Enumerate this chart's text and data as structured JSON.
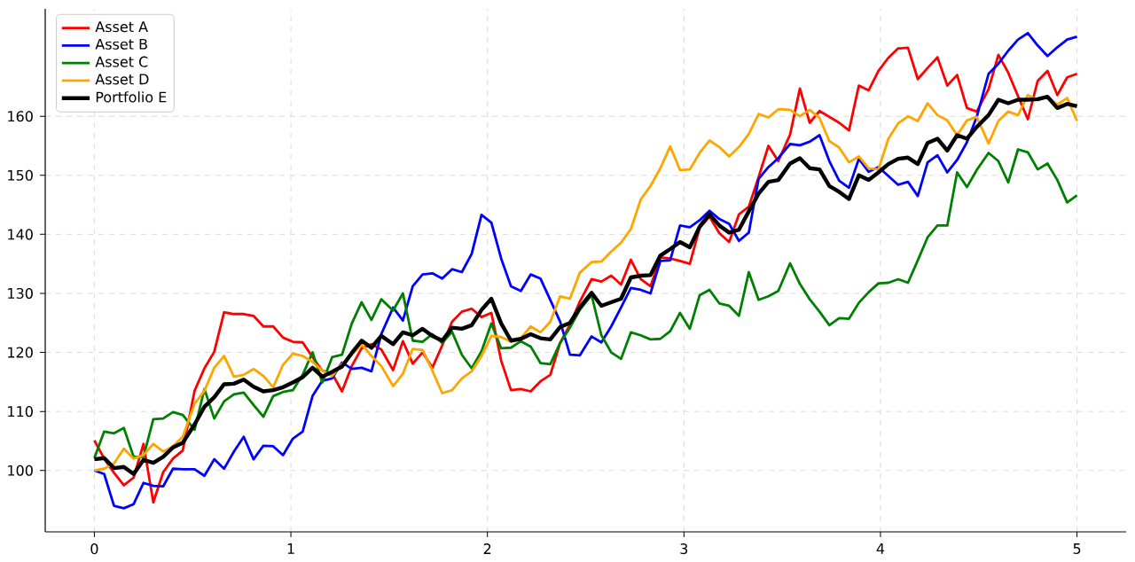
{
  "chart_data": {
    "type": "line",
    "x": [
      0,
      0.05,
      0.1,
      0.15,
      0.2,
      0.25,
      0.3,
      0.35,
      0.4,
      0.45,
      0.51,
      0.56,
      0.61,
      0.66,
      0.71,
      0.76,
      0.81,
      0.86,
      0.91,
      0.96,
      1.01,
      1.06,
      1.11,
      1.16,
      1.21,
      1.26,
      1.31,
      1.36,
      1.41,
      1.46,
      1.52,
      1.57,
      1.62,
      1.67,
      1.72,
      1.77,
      1.82,
      1.87,
      1.92,
      1.97,
      2.02,
      2.07,
      2.12,
      2.17,
      2.22,
      2.27,
      2.32,
      2.37,
      2.42,
      2.47,
      2.53,
      2.58,
      2.63,
      2.68,
      2.73,
      2.78,
      2.83,
      2.88,
      2.93,
      2.98,
      3.03,
      3.08,
      3.13,
      3.18,
      3.23,
      3.28,
      3.33,
      3.38,
      3.43,
      3.48,
      3.54,
      3.59,
      3.64,
      3.69,
      3.74,
      3.79,
      3.84,
      3.89,
      3.94,
      3.99,
      4.04,
      4.09,
      4.14,
      4.19,
      4.24,
      4.29,
      4.34,
      4.39,
      4.44,
      4.49,
      4.55,
      4.6,
      4.65,
      4.7,
      4.75,
      4.8,
      4.85,
      4.9,
      4.95,
      5.0
    ],
    "series": [
      {
        "name": "Asset A",
        "color": "#ff0000",
        "values": [
          105.1,
          102,
          99.6,
          97.5,
          98.8,
          104.5,
          94.6,
          99.7,
          102,
          103.4,
          113.5,
          117.3,
          120.1,
          126.8,
          126.5,
          126.5,
          126.2,
          124.4,
          124.4,
          122.5,
          121.8,
          121.7,
          119.2,
          116.9,
          116.4,
          113.4,
          117.7,
          120.7,
          121.4,
          120.5,
          117,
          121.9,
          118.1,
          120,
          117.4,
          121.2,
          125.2,
          126.9,
          127.4,
          126,
          126.7,
          118.6,
          113.6,
          113.8,
          113.4,
          115.1,
          116.2,
          121.6,
          124.7,
          128.6,
          132.4,
          132,
          133,
          131.5,
          135.7,
          132.4,
          131.2,
          136.1,
          135.9,
          135.5,
          135,
          141.1,
          143,
          140.2,
          138.7,
          143.4,
          144.7,
          149.7,
          155,
          152.4,
          156.9,
          164.7,
          158.9,
          160.9,
          159.9,
          158.9,
          157.6,
          165.2,
          164.4,
          167.7,
          169.9,
          171.5,
          171.6,
          166.3,
          168.2,
          170,
          165.2,
          167,
          161.4,
          160.8,
          164.6,
          170.4,
          167.4,
          163.4,
          159.5,
          166,
          167.7,
          163.6,
          166.6,
          167.2
        ]
      },
      {
        "name": "Asset B",
        "color": "#0000ff",
        "values": [
          100,
          99.4,
          94,
          93.6,
          94.3,
          97.9,
          97.4,
          97.3,
          100.3,
          100.2,
          100.2,
          99.1,
          101.9,
          100.3,
          103.2,
          105.7,
          101.9,
          104.2,
          104.1,
          102.6,
          105.4,
          106.6,
          112.6,
          115.2,
          115.6,
          118.3,
          117.2,
          117.4,
          116.8,
          123.1,
          127.6,
          125.4,
          131.2,
          133.2,
          133.4,
          132.5,
          134.1,
          133.6,
          136.7,
          143.3,
          142,
          135.9,
          131.2,
          130.4,
          133.2,
          132.5,
          128.9,
          125.2,
          119.6,
          119.5,
          122.7,
          121.7,
          124.4,
          127.6,
          130.9,
          130.6,
          130,
          135.5,
          135.6,
          141.5,
          141.2,
          142.4,
          144,
          142.6,
          141.8,
          138.9,
          140.3,
          149.4,
          151.4,
          152.9,
          155.3,
          155.1,
          155.7,
          156.8,
          152.4,
          149.1,
          147.9,
          152.8,
          150.6,
          151.4,
          149.9,
          148.4,
          148.9,
          146.5,
          152.2,
          153.4,
          150.5,
          152.6,
          155.6,
          159.9,
          167.2,
          168.9,
          171.1,
          173,
          174.1,
          172,
          170.2,
          171.7,
          173,
          173.5
        ]
      },
      {
        "name": "Asset C",
        "color": "#008000",
        "values": [
          102.1,
          106.6,
          106.3,
          107.2,
          102.3,
          102.3,
          108.7,
          108.8,
          109.9,
          109.4,
          106.9,
          113.8,
          108.8,
          111.7,
          112.9,
          113.2,
          111.1,
          109.1,
          112.6,
          113.3,
          113.6,
          116.2,
          120,
          114.9,
          119.2,
          119.6,
          124.9,
          128.5,
          125.5,
          129,
          127.1,
          130,
          122,
          121.8,
          123.1,
          121.6,
          123.5,
          119.6,
          117.3,
          120.2,
          124.9,
          120.7,
          120.8,
          121.9,
          121,
          118.2,
          118,
          121.6,
          124.2,
          127.2,
          129.7,
          122.9,
          120,
          118.9,
          123.4,
          122.9,
          122.2,
          122.3,
          123.6,
          126.7,
          124,
          129.7,
          130.6,
          128.3,
          127.9,
          126.2,
          133.6,
          128.9,
          129.5,
          130.4,
          135.1,
          131.6,
          129,
          126.9,
          124.6,
          125.8,
          125.7,
          128.4,
          130.2,
          131.7,
          131.8,
          132.4,
          131.8,
          135.6,
          139.5,
          141.5,
          141.5,
          150.5,
          148,
          150.9,
          153.8,
          152.4,
          148.8,
          154.4,
          153.9,
          151,
          152,
          149.2,
          145.4,
          146.6
        ]
      },
      {
        "name": "Asset D",
        "color": "#ffa500",
        "values": [
          100,
          100.3,
          101.2,
          103.7,
          102,
          102.6,
          104.5,
          103.2,
          104.1,
          105.7,
          111.3,
          113.5,
          117.4,
          119.4,
          115.9,
          116.2,
          117.2,
          116,
          114.1,
          117.9,
          119.8,
          119.4,
          118.4,
          116.9,
          116,
          118,
          119.6,
          121.4,
          119.4,
          117.7,
          114.3,
          116.4,
          120.6,
          120.4,
          116.9,
          113.1,
          113.6,
          115.6,
          116.8,
          119.4,
          122.8,
          122.6,
          121.8,
          122.4,
          124.4,
          123.4,
          125.2,
          129.5,
          129.1,
          133.5,
          135.3,
          135.4,
          137.1,
          138.6,
          140.9,
          145.9,
          148.2,
          151.2,
          154.9,
          150.9,
          151,
          153.8,
          155.9,
          154.8,
          153.2,
          154.8,
          157,
          160.4,
          159.8,
          161.2,
          161.1,
          160,
          161.1,
          159.7,
          155.8,
          154.7,
          152.2,
          153.2,
          151.2,
          151,
          156.2,
          158.8,
          160,
          159.2,
          162.2,
          160.2,
          159.3,
          156.8,
          159.3,
          159.9,
          155.4,
          159.2,
          160.8,
          160.2,
          163.6,
          162.7,
          163.3,
          162,
          163.1,
          159.2
        ]
      },
      {
        "name": "Portfolio E",
        "color": "#000000",
        "values": [
          101.9,
          102.1,
          100.4,
          100.6,
          99.4,
          101.8,
          101.3,
          102.3,
          103.9,
          104.7,
          107.8,
          110.8,
          112.4,
          114.6,
          114.7,
          115.4,
          114.2,
          113.4,
          113.6,
          114.1,
          114.9,
          115.8,
          117.4,
          115.9,
          116.7,
          117.6,
          119.9,
          122,
          120.8,
          122.8,
          121.4,
          123.4,
          122.9,
          124,
          122.8,
          122,
          124.2,
          124,
          124.6,
          127.2,
          129.1,
          124.9,
          122,
          122.3,
          123.1,
          122.4,
          122.2,
          124.3,
          125,
          127.6,
          130.1,
          127.9,
          128.5,
          129.1,
          132.7,
          133,
          133.1,
          136.4,
          137.5,
          138.7,
          137.8,
          141.3,
          143.4,
          141.5,
          140.3,
          140.8,
          143.9,
          146.9,
          148.9,
          149.2,
          152,
          152.9,
          151.2,
          151,
          148.2,
          147.2,
          146,
          150,
          149.2,
          150.5,
          151.9,
          152.8,
          153,
          151.9,
          155.5,
          156.2,
          154.2,
          156.8,
          156.2,
          158.2,
          160.2,
          162.8,
          162.2,
          162.8,
          162.8,
          162.9,
          163.3,
          161.4,
          162.1,
          161.7
        ]
      }
    ],
    "xlim": [
      -0.25,
      5.25
    ],
    "ylim": [
      89.6,
      178.2
    ],
    "xticks": [
      0,
      1,
      2,
      3,
      4,
      5
    ],
    "yticks": [
      100,
      110,
      120,
      130,
      140,
      150,
      160
    ],
    "grid": true,
    "legend": "top left",
    "marker": "none",
    "line_style": "solid"
  }
}
